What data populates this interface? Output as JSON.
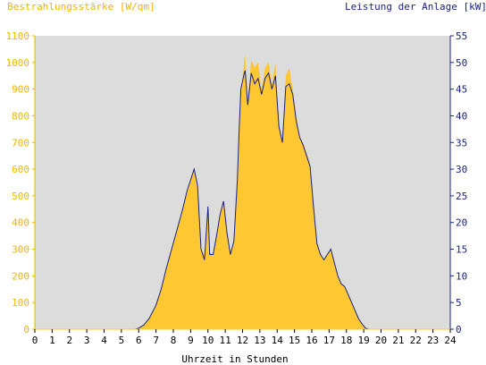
{
  "chart_data": {
    "type": "area",
    "left_axis_title": "Bestrahlungsstärke [W/qm]",
    "right_axis_title": "Leistung der Anlage [kW]",
    "xlabel": "Uhrzeit in Stunden",
    "xlim": [
      0,
      24
    ],
    "ylim_left": [
      0,
      1100
    ],
    "ylim_right": [
      0,
      55
    ],
    "x_ticks": [
      "0",
      "1",
      "2",
      "3",
      "4",
      "5",
      "6",
      "7",
      "8",
      "9",
      "10",
      "11",
      "12",
      "13",
      "14",
      "15",
      "16",
      "17",
      "18",
      "19",
      "20",
      "21",
      "22",
      "23",
      "24"
    ],
    "left_ticks": [
      "0",
      "100",
      "200",
      "300",
      "400",
      "500",
      "600",
      "700",
      "800",
      "900",
      "1000",
      "1100"
    ],
    "right_ticks": [
      "0",
      "5",
      "10",
      "15",
      "20",
      "25",
      "30",
      "35",
      "40",
      "45",
      "50",
      "55"
    ],
    "colors": {
      "plot_bg": "#dcdcdc",
      "irradiance_fill": "#ffc832",
      "power_line": "#1a237e",
      "left_axis_text": "#f0b400",
      "right_axis_text": "#1a237e",
      "right_axis_line": "#1a237e",
      "bottom_axis_line": "#ffc832"
    },
    "series": [
      {
        "axis": "left",
        "style": "filled-area",
        "x": [
          0,
          5.8,
          6.0,
          6.3,
          6.6,
          7.0,
          7.3,
          7.6,
          7.9,
          8.2,
          8.5,
          8.8,
          9.0,
          9.2,
          9.4,
          9.6,
          9.8,
          10.0,
          10.1,
          10.3,
          10.5,
          10.7,
          10.9,
          11.1,
          11.3,
          11.5,
          11.7,
          11.8,
          11.9,
          12.0,
          12.1,
          12.15,
          12.3,
          12.5,
          12.7,
          12.9,
          13.1,
          13.3,
          13.5,
          13.7,
          13.9,
          14.1,
          14.3,
          14.5,
          14.7,
          14.9,
          15.1,
          15.3,
          15.5,
          15.7,
          15.9,
          16.1,
          16.3,
          16.5,
          16.7,
          16.9,
          17.1,
          17.3,
          17.5,
          17.7,
          17.9,
          18.1,
          18.3,
          18.5,
          18.7,
          18.9,
          19.1,
          19.3,
          24
        ],
        "y": [
          0,
          0,
          5,
          15,
          40,
          90,
          150,
          230,
          300,
          370,
          440,
          520,
          560,
          600,
          520,
          300,
          280,
          460,
          290,
          280,
          350,
          430,
          480,
          360,
          280,
          330,
          560,
          740,
          900,
          930,
          1010,
          1030,
          850,
          1010,
          980,
          1000,
          900,
          980,
          1000,
          920,
          1000,
          760,
          700,
          950,
          980,
          900,
          800,
          720,
          700,
          660,
          620,
          480,
          330,
          280,
          260,
          280,
          300,
          250,
          200,
          170,
          160,
          130,
          100,
          70,
          40,
          20,
          5,
          0,
          0
        ]
      },
      {
        "axis": "right",
        "style": "line",
        "x": [
          0,
          5.8,
          6.0,
          6.3,
          6.6,
          7.0,
          7.3,
          7.6,
          7.9,
          8.2,
          8.5,
          8.8,
          9.0,
          9.2,
          9.4,
          9.6,
          9.8,
          10.0,
          10.1,
          10.3,
          10.5,
          10.7,
          10.9,
          11.1,
          11.3,
          11.5,
          11.7,
          11.8,
          11.9,
          12.0,
          12.1,
          12.15,
          12.3,
          12.5,
          12.7,
          12.9,
          13.1,
          13.3,
          13.5,
          13.7,
          13.9,
          14.1,
          14.3,
          14.5,
          14.7,
          14.9,
          15.1,
          15.3,
          15.5,
          15.7,
          15.9,
          16.1,
          16.3,
          16.5,
          16.7,
          16.9,
          17.1,
          17.3,
          17.5,
          17.7,
          17.9,
          18.1,
          18.3,
          18.5,
          18.7,
          18.9,
          19.1,
          19.3,
          24
        ],
        "y": [
          0,
          0,
          0.2,
          0.8,
          2,
          4.5,
          7.5,
          11.5,
          15,
          18.5,
          22,
          26,
          28,
          30,
          27,
          15,
          13,
          23,
          14,
          14,
          17.5,
          21.5,
          24,
          18,
          14,
          16.5,
          28,
          37,
          45,
          46.5,
          48,
          48.5,
          42,
          48,
          46,
          47,
          44,
          47,
          48,
          45,
          47.5,
          38,
          35,
          45.5,
          46,
          44,
          39,
          36,
          34.5,
          32.5,
          30.5,
          23,
          16,
          14,
          13,
          14,
          15,
          12.5,
          10,
          8.5,
          8,
          6.5,
          5,
          3.5,
          2,
          1,
          0.2,
          0,
          0
        ]
      }
    ]
  }
}
